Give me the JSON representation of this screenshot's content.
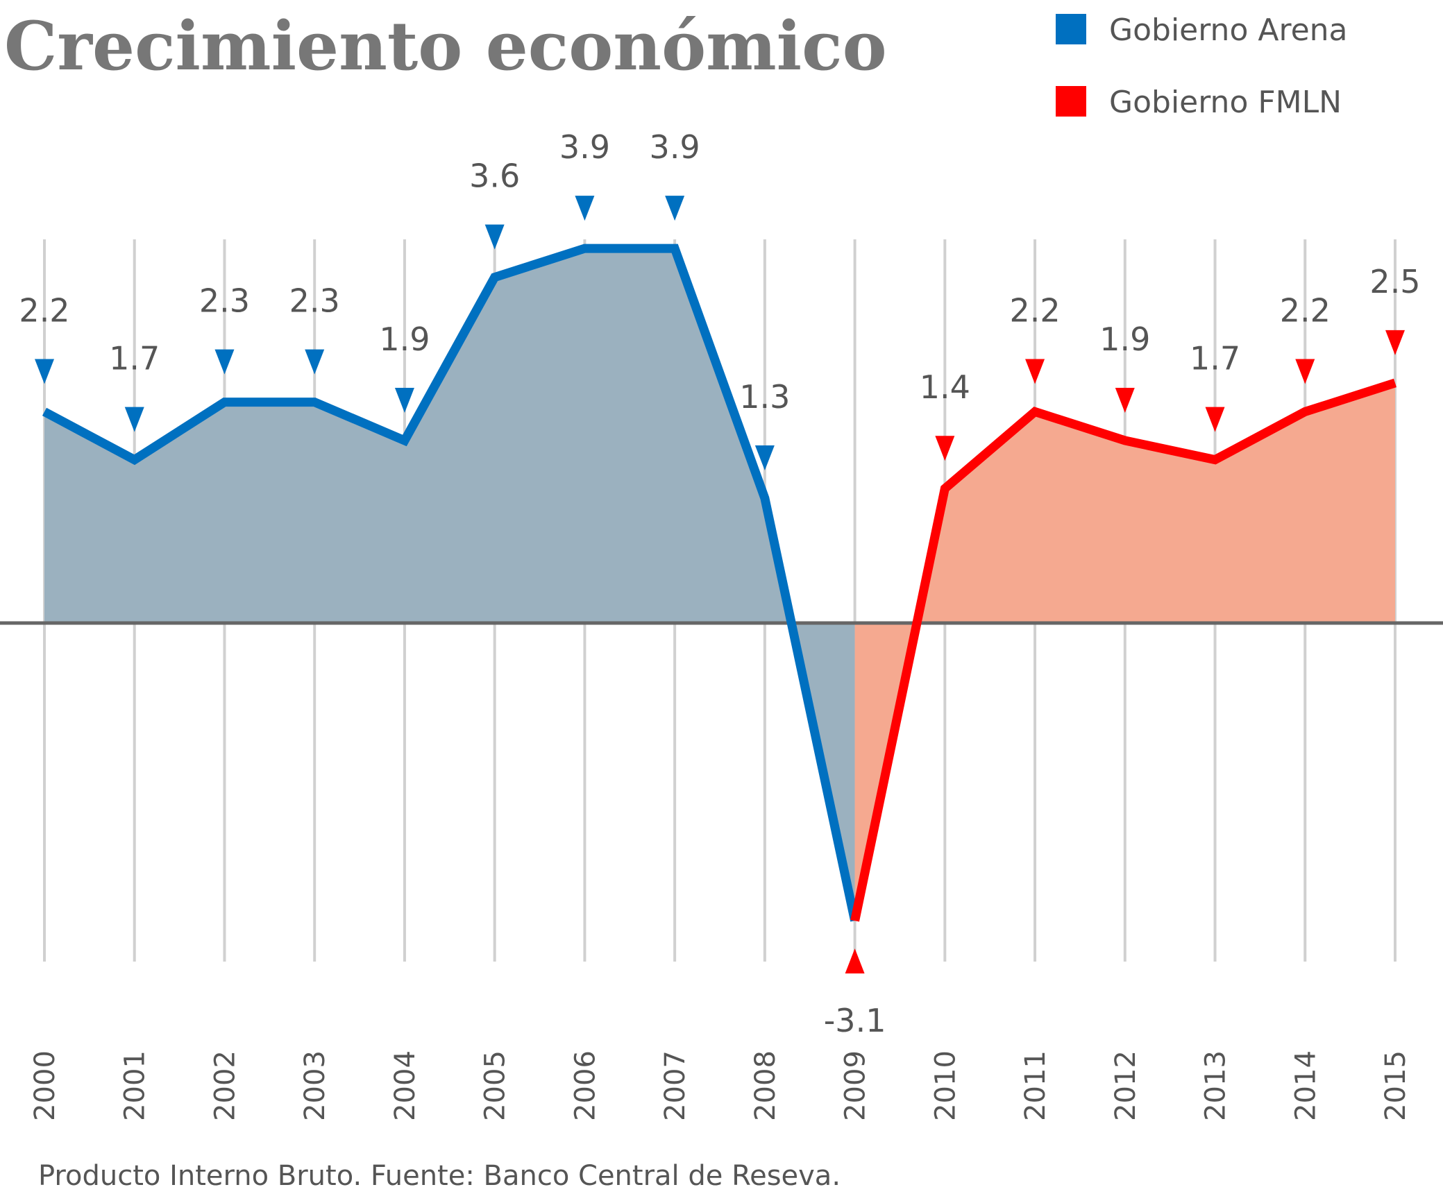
{
  "chart_data": {
    "type": "line",
    "title": "Crecimiento económico",
    "source": "Producto Interno Bruto. Fuente: Banco Central de Reseva.",
    "categories": [
      "2000",
      "2001",
      "2002",
      "2003",
      "2004",
      "2005",
      "2006",
      "2007",
      "2008",
      "2009",
      "2010",
      "2011",
      "2012",
      "2013",
      "2014",
      "2015"
    ],
    "series": [
      {
        "name": "Gobierno Arena",
        "color": "#0070c0",
        "fill": "#9bb1bf",
        "values": [
          2.2,
          1.7,
          2.3,
          2.3,
          1.9,
          3.6,
          3.9,
          3.9,
          1.3,
          -3.1,
          null,
          null,
          null,
          null,
          null,
          null
        ]
      },
      {
        "name": "Gobierno FMLN",
        "color": "#ff0000",
        "fill": "#f5a990",
        "values": [
          null,
          null,
          null,
          null,
          null,
          null,
          null,
          null,
          null,
          -3.1,
          1.4,
          2.2,
          1.9,
          1.7,
          2.2,
          2.5
        ]
      }
    ],
    "grid": true
  }
}
